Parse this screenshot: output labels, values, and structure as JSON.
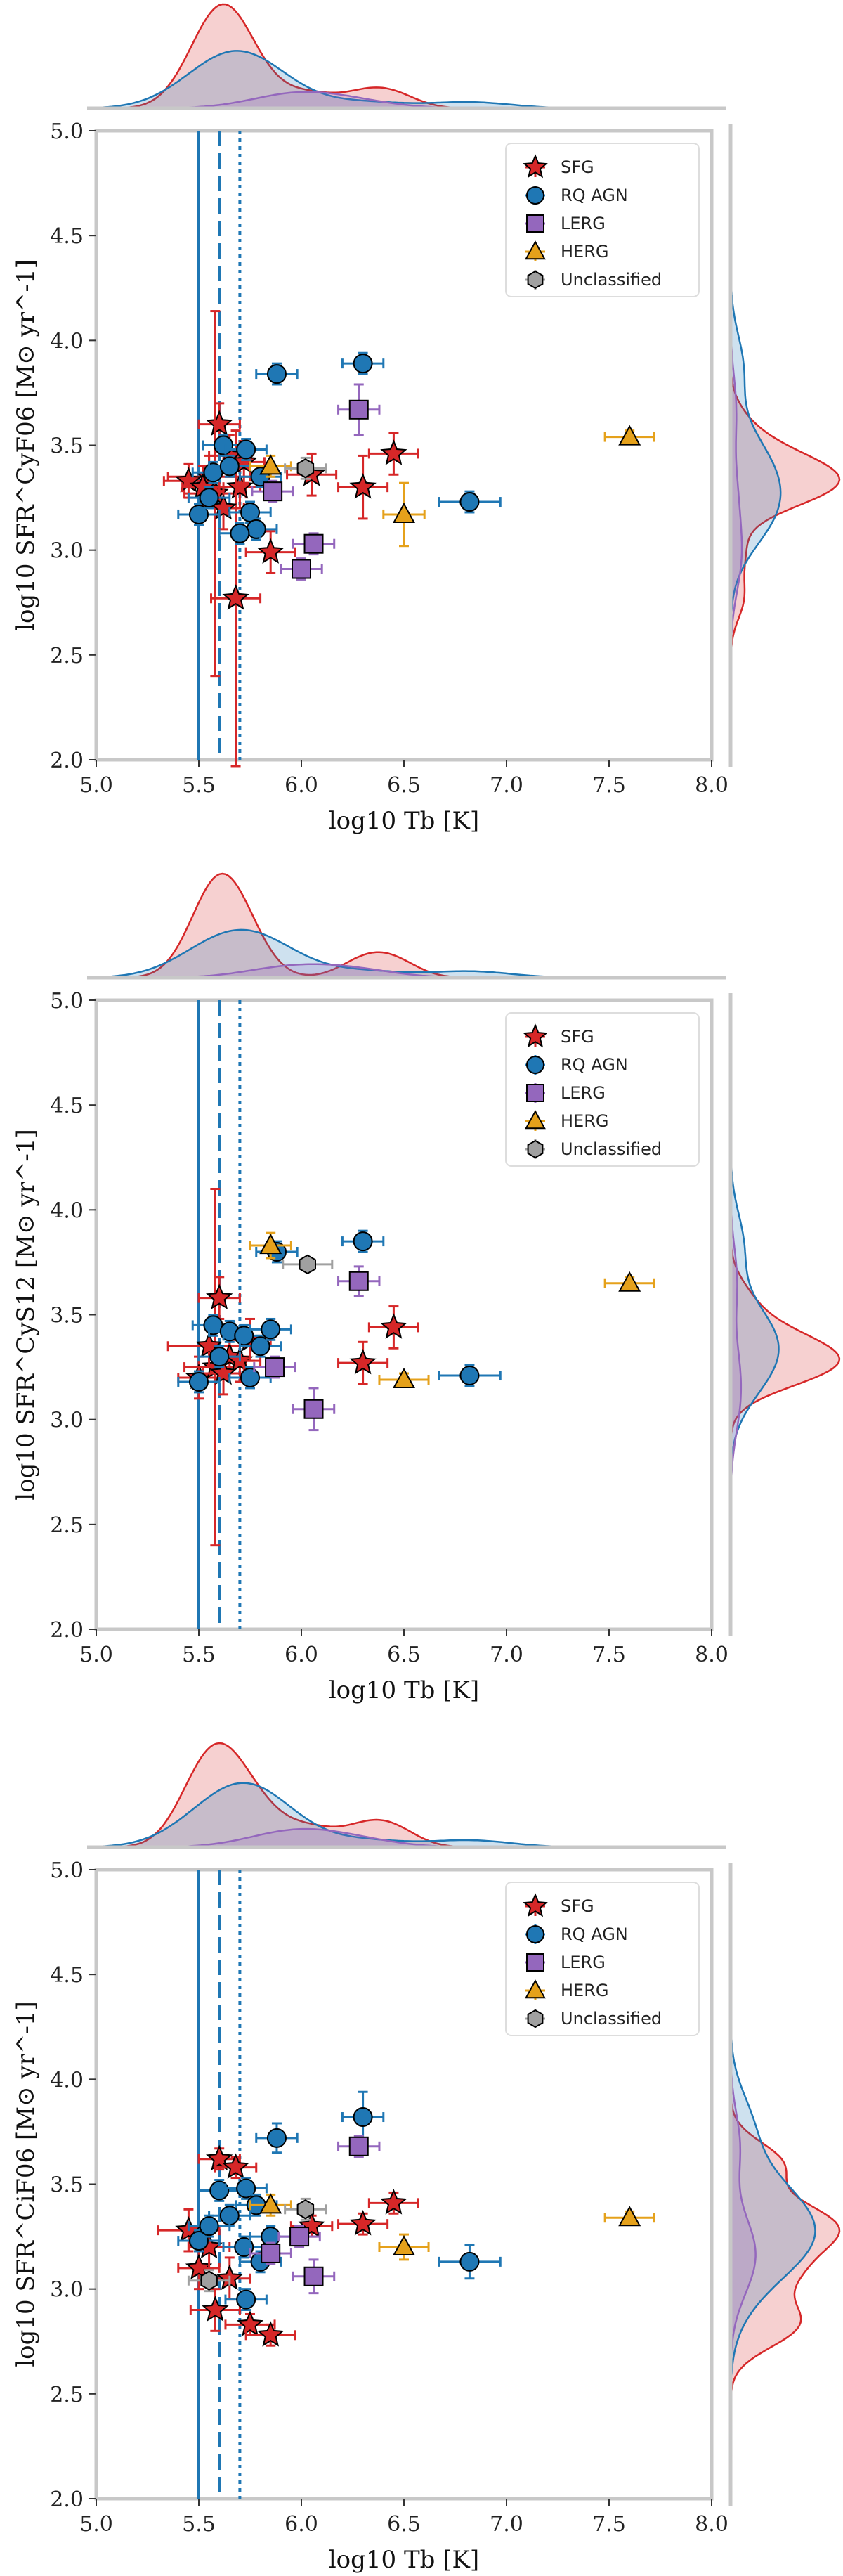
{
  "colors": {
    "SFG": "#d62728",
    "RQ AGN": "#1f77b4",
    "LERG": "#9467bd",
    "HERG": "#e5a11b",
    "Unclassified": "#a0a0a0",
    "vline": "#1f77b4",
    "kde_sfg": "#d62728",
    "kde_agn": "#1f77b4",
    "kde_lerg": "#9467bd",
    "kde_herg": "#e5a11b"
  },
  "chart_data": [
    {
      "type": "scatter",
      "title": "",
      "xlabel": "log10 Tb [K]",
      "ylabel": "log10 SFR^CyF06 [M⊙ yr^-1]",
      "ylabel_sup": "CyF06",
      "xlim": [
        5.0,
        8.0
      ],
      "ylim": [
        2.0,
        5.0
      ],
      "xticks": [
        "5.0",
        "5.5",
        "6.0",
        "6.5",
        "7.0",
        "7.5",
        "8.0"
      ],
      "yticks": [
        "2.0",
        "2.5",
        "3.0",
        "3.5",
        "4.0",
        "4.5",
        "5.0"
      ],
      "vlines": [
        {
          "x": 5.5,
          "style": "solid"
        },
        {
          "x": 5.6,
          "style": "dashed"
        },
        {
          "x": 5.7,
          "style": "dotted"
        }
      ],
      "legend": [
        "SFG",
        "RQ AGN",
        "LERG",
        "HERG",
        "Unclassified"
      ],
      "legend_position": "top-right",
      "series": [
        {
          "name": "SFG",
          "marker": "star",
          "points": [
            {
              "x": 5.6,
              "y": 3.6,
              "xerr": 0.1,
              "yerr": 0.1
            },
            {
              "x": 5.58,
              "y": 3.27,
              "xerr": 0.15,
              "yerr": 0.87
            },
            {
              "x": 5.55,
              "y": 3.35,
              "xerr": 0.2,
              "yerr": 0.1
            },
            {
              "x": 5.45,
              "y": 3.33,
              "xerr": 0.12,
              "yerr": 0.08
            },
            {
              "x": 5.52,
              "y": 3.3,
              "xerr": 0.1,
              "yerr": 0.1
            },
            {
              "x": 5.7,
              "y": 3.3,
              "xerr": 0.1,
              "yerr": 0.1
            },
            {
              "x": 5.68,
              "y": 2.77,
              "xerr": 0.12,
              "yerr": 0.8
            },
            {
              "x": 5.85,
              "y": 2.99,
              "xerr": 0.12,
              "yerr": 0.1
            },
            {
              "x": 6.05,
              "y": 3.36,
              "xerr": 0.12,
              "yerr": 0.1
            },
            {
              "x": 6.3,
              "y": 3.3,
              "xerr": 0.12,
              "yerr": 0.15
            },
            {
              "x": 6.45,
              "y": 3.46,
              "xerr": 0.12,
              "yerr": 0.1
            },
            {
              "x": 5.65,
              "y": 3.45,
              "xerr": 0.1,
              "yerr": 0.1
            },
            {
              "x": 5.62,
              "y": 3.2,
              "xerr": 0.1,
              "yerr": 0.1
            },
            {
              "x": 5.72,
              "y": 3.42,
              "xerr": 0.1,
              "yerr": 0.1
            }
          ]
        },
        {
          "name": "RQ AGN",
          "marker": "circle",
          "points": [
            {
              "x": 5.5,
              "y": 3.17,
              "xerr": 0.1,
              "yerr": 0.05
            },
            {
              "x": 5.57,
              "y": 3.37,
              "xerr": 0.1,
              "yerr": 0.05
            },
            {
              "x": 5.62,
              "y": 3.5,
              "xerr": 0.1,
              "yerr": 0.05
            },
            {
              "x": 5.73,
              "y": 3.48,
              "xerr": 0.1,
              "yerr": 0.05
            },
            {
              "x": 5.75,
              "y": 3.18,
              "xerr": 0.1,
              "yerr": 0.05
            },
            {
              "x": 5.78,
              "y": 3.1,
              "xerr": 0.1,
              "yerr": 0.05
            },
            {
              "x": 5.7,
              "y": 3.08,
              "xerr": 0.1,
              "yerr": 0.05
            },
            {
              "x": 5.8,
              "y": 3.35,
              "xerr": 0.1,
              "yerr": 0.05
            },
            {
              "x": 5.88,
              "y": 3.84,
              "xerr": 0.1,
              "yerr": 0.05
            },
            {
              "x": 6.3,
              "y": 3.89,
              "xerr": 0.1,
              "yerr": 0.05
            },
            {
              "x": 6.82,
              "y": 3.23,
              "xerr": 0.15,
              "yerr": 0.05
            },
            {
              "x": 5.65,
              "y": 3.4,
              "xerr": 0.1,
              "yerr": 0.05
            },
            {
              "x": 5.55,
              "y": 3.25,
              "xerr": 0.1,
              "yerr": 0.05
            }
          ]
        },
        {
          "name": "LERG",
          "marker": "square",
          "points": [
            {
              "x": 5.86,
              "y": 3.28,
              "xerr": 0.1,
              "yerr": 0.05
            },
            {
              "x": 6.06,
              "y": 3.03,
              "xerr": 0.1,
              "yerr": 0.05
            },
            {
              "x": 6.0,
              "y": 2.91,
              "xerr": 0.1,
              "yerr": 0.05
            },
            {
              "x": 6.28,
              "y": 3.67,
              "xerr": 0.1,
              "yerr": 0.12
            }
          ]
        },
        {
          "name": "HERG",
          "marker": "triangle",
          "points": [
            {
              "x": 5.85,
              "y": 3.4,
              "xerr": 0.1,
              "yerr": 0.05
            },
            {
              "x": 6.5,
              "y": 3.17,
              "xerr": 0.1,
              "yerr": 0.15
            },
            {
              "x": 7.6,
              "y": 3.54,
              "xerr": 0.12,
              "yerr": 0.03
            }
          ]
        },
        {
          "name": "Unclassified",
          "marker": "hexagon",
          "points": [
            {
              "x": 6.02,
              "y": 3.39,
              "xerr": 0.1,
              "yerr": 0.05
            }
          ]
        }
      ]
    },
    {
      "type": "scatter",
      "title": "",
      "xlabel": "log10 Tb [K]",
      "ylabel": "log10 SFR^CyS12 [M⊙ yr^-1]",
      "ylabel_sup": "CyS12",
      "xlim": [
        5.0,
        8.0
      ],
      "ylim": [
        2.0,
        5.0
      ],
      "xticks": [
        "5.0",
        "5.5",
        "6.0",
        "6.5",
        "7.0",
        "7.5",
        "8.0"
      ],
      "yticks": [
        "2.0",
        "2.5",
        "3.0",
        "3.5",
        "4.0",
        "4.5",
        "5.0"
      ],
      "vlines": [
        {
          "x": 5.5,
          "style": "solid"
        },
        {
          "x": 5.6,
          "style": "dashed"
        },
        {
          "x": 5.7,
          "style": "dotted"
        }
      ],
      "legend": [
        "SFG",
        "RQ AGN",
        "LERG",
        "HERG",
        "Unclassified"
      ],
      "legend_position": "top-right",
      "series": [
        {
          "name": "SFG",
          "marker": "star",
          "points": [
            {
              "x": 5.5,
              "y": 3.2,
              "xerr": 0.1,
              "yerr": 0.1
            },
            {
              "x": 5.58,
              "y": 3.25,
              "xerr": 0.15,
              "yerr": 0.85
            },
            {
              "x": 5.55,
              "y": 3.35,
              "xerr": 0.2,
              "yerr": 0.1
            },
            {
              "x": 5.6,
              "y": 3.58,
              "xerr": 0.1,
              "yerr": 0.1
            },
            {
              "x": 5.65,
              "y": 3.3,
              "xerr": 0.1,
              "yerr": 0.1
            },
            {
              "x": 5.7,
              "y": 3.28,
              "xerr": 0.1,
              "yerr": 0.1
            },
            {
              "x": 6.3,
              "y": 3.27,
              "xerr": 0.12,
              "yerr": 0.1
            },
            {
              "x": 6.45,
              "y": 3.44,
              "xerr": 0.12,
              "yerr": 0.1
            },
            {
              "x": 5.62,
              "y": 3.22,
              "xerr": 0.1,
              "yerr": 0.1
            },
            {
              "x": 5.75,
              "y": 3.38,
              "xerr": 0.1,
              "yerr": 0.1
            }
          ]
        },
        {
          "name": "RQ AGN",
          "marker": "circle",
          "points": [
            {
              "x": 5.5,
              "y": 3.18,
              "xerr": 0.1,
              "yerr": 0.05
            },
            {
              "x": 5.57,
              "y": 3.45,
              "xerr": 0.1,
              "yerr": 0.05
            },
            {
              "x": 5.65,
              "y": 3.42,
              "xerr": 0.1,
              "yerr": 0.05
            },
            {
              "x": 5.72,
              "y": 3.4,
              "xerr": 0.1,
              "yerr": 0.05
            },
            {
              "x": 5.8,
              "y": 3.35,
              "xerr": 0.1,
              "yerr": 0.05
            },
            {
              "x": 5.75,
              "y": 3.2,
              "xerr": 0.1,
              "yerr": 0.05
            },
            {
              "x": 5.88,
              "y": 3.8,
              "xerr": 0.1,
              "yerr": 0.05
            },
            {
              "x": 6.3,
              "y": 3.85,
              "xerr": 0.1,
              "yerr": 0.05
            },
            {
              "x": 6.82,
              "y": 3.21,
              "xerr": 0.15,
              "yerr": 0.05
            },
            {
              "x": 5.85,
              "y": 3.43,
              "xerr": 0.1,
              "yerr": 0.05
            },
            {
              "x": 5.6,
              "y": 3.3,
              "xerr": 0.1,
              "yerr": 0.05
            }
          ]
        },
        {
          "name": "LERG",
          "marker": "square",
          "points": [
            {
              "x": 5.87,
              "y": 3.25,
              "xerr": 0.1,
              "yerr": 0.05
            },
            {
              "x": 6.06,
              "y": 3.05,
              "xerr": 0.1,
              "yerr": 0.1
            },
            {
              "x": 6.28,
              "y": 3.66,
              "xerr": 0.1,
              "yerr": 0.07
            }
          ]
        },
        {
          "name": "HERG",
          "marker": "triangle",
          "points": [
            {
              "x": 5.85,
              "y": 3.83,
              "xerr": 0.1,
              "yerr": 0.06
            },
            {
              "x": 6.5,
              "y": 3.19,
              "xerr": 0.12,
              "yerr": 0.03
            },
            {
              "x": 7.6,
              "y": 3.65,
              "xerr": 0.12,
              "yerr": 0.03
            }
          ]
        },
        {
          "name": "Unclassified",
          "marker": "hexagon",
          "points": [
            {
              "x": 6.03,
              "y": 3.74,
              "xerr": 0.12,
              "yerr": 0.03
            }
          ]
        }
      ]
    },
    {
      "type": "scatter",
      "title": "",
      "xlabel": "log10 Tb [K]",
      "ylabel": "log10 SFR^CiF06 [M⊙ yr^-1]",
      "ylabel_sup": "CiF06",
      "xlim": [
        5.0,
        8.0
      ],
      "ylim": [
        2.0,
        5.0
      ],
      "xticks": [
        "5.0",
        "5.5",
        "6.0",
        "6.5",
        "7.0",
        "7.5",
        "8.0"
      ],
      "yticks": [
        "2.0",
        "2.5",
        "3.0",
        "3.5",
        "4.0",
        "4.5",
        "5.0"
      ],
      "vlines": [
        {
          "x": 5.5,
          "style": "solid"
        },
        {
          "x": 5.6,
          "style": "dashed"
        },
        {
          "x": 5.7,
          "style": "dotted"
        }
      ],
      "legend": [
        "SFG",
        "RQ AGN",
        "LERG",
        "HERG",
        "Unclassified"
      ],
      "legend_position": "top-right",
      "series": [
        {
          "name": "SFG",
          "marker": "star",
          "points": [
            {
              "x": 5.6,
              "y": 3.62,
              "xerr": 0.1,
              "yerr": 0.05
            },
            {
              "x": 5.68,
              "y": 3.58,
              "xerr": 0.1,
              "yerr": 0.05
            },
            {
              "x": 5.45,
              "y": 3.28,
              "xerr": 0.15,
              "yerr": 0.1
            },
            {
              "x": 5.5,
              "y": 3.1,
              "xerr": 0.1,
              "yerr": 0.1
            },
            {
              "x": 5.58,
              "y": 2.9,
              "xerr": 0.12,
              "yerr": 0.1
            },
            {
              "x": 5.75,
              "y": 2.83,
              "xerr": 0.12,
              "yerr": 0.05
            },
            {
              "x": 5.85,
              "y": 2.78,
              "xerr": 0.12,
              "yerr": 0.05
            },
            {
              "x": 6.05,
              "y": 3.3,
              "xerr": 0.1,
              "yerr": 0.05
            },
            {
              "x": 6.3,
              "y": 3.31,
              "xerr": 0.12,
              "yerr": 0.05
            },
            {
              "x": 6.45,
              "y": 3.41,
              "xerr": 0.12,
              "yerr": 0.05
            },
            {
              "x": 5.55,
              "y": 3.2,
              "xerr": 0.1,
              "yerr": 0.1
            },
            {
              "x": 5.65,
              "y": 3.05,
              "xerr": 0.1,
              "yerr": 0.1
            }
          ]
        },
        {
          "name": "RQ AGN",
          "marker": "circle",
          "points": [
            {
              "x": 5.5,
              "y": 3.23,
              "xerr": 0.1,
              "yerr": 0.05
            },
            {
              "x": 5.6,
              "y": 3.47,
              "xerr": 0.1,
              "yerr": 0.05
            },
            {
              "x": 5.73,
              "y": 3.48,
              "xerr": 0.1,
              "yerr": 0.05
            },
            {
              "x": 5.78,
              "y": 3.4,
              "xerr": 0.1,
              "yerr": 0.05
            },
            {
              "x": 5.72,
              "y": 3.2,
              "xerr": 0.1,
              "yerr": 0.05
            },
            {
              "x": 5.8,
              "y": 3.13,
              "xerr": 0.1,
              "yerr": 0.05
            },
            {
              "x": 5.73,
              "y": 2.95,
              "xerr": 0.1,
              "yerr": 0.05
            },
            {
              "x": 5.88,
              "y": 3.72,
              "xerr": 0.1,
              "yerr": 0.07
            },
            {
              "x": 6.3,
              "y": 3.82,
              "xerr": 0.1,
              "yerr": 0.12
            },
            {
              "x": 6.82,
              "y": 3.13,
              "xerr": 0.15,
              "yerr": 0.08
            },
            {
              "x": 5.65,
              "y": 3.35,
              "xerr": 0.1,
              "yerr": 0.05
            },
            {
              "x": 5.85,
              "y": 3.25,
              "xerr": 0.1,
              "yerr": 0.05
            },
            {
              "x": 5.55,
              "y": 3.3,
              "xerr": 0.1,
              "yerr": 0.05
            }
          ]
        },
        {
          "name": "LERG",
          "marker": "square",
          "points": [
            {
              "x": 5.99,
              "y": 3.25,
              "xerr": 0.1,
              "yerr": 0.05
            },
            {
              "x": 6.06,
              "y": 3.06,
              "xerr": 0.1,
              "yerr": 0.08
            },
            {
              "x": 6.28,
              "y": 3.68,
              "xerr": 0.1,
              "yerr": 0.05
            },
            {
              "x": 5.85,
              "y": 3.17,
              "xerr": 0.1,
              "yerr": 0.05
            }
          ]
        },
        {
          "name": "HERG",
          "marker": "triangle",
          "points": [
            {
              "x": 5.85,
              "y": 3.4,
              "xerr": 0.1,
              "yerr": 0.05
            },
            {
              "x": 6.5,
              "y": 3.2,
              "xerr": 0.12,
              "yerr": 0.06
            },
            {
              "x": 7.6,
              "y": 3.34,
              "xerr": 0.12,
              "yerr": 0.03
            }
          ]
        },
        {
          "name": "Unclassified",
          "marker": "hexagon",
          "points": [
            {
              "x": 6.02,
              "y": 3.38,
              "xerr": 0.1,
              "yerr": 0.05
            },
            {
              "x": 5.55,
              "y": 3.04,
              "xerr": 0.1,
              "yerr": 0.05
            }
          ]
        }
      ]
    }
  ]
}
